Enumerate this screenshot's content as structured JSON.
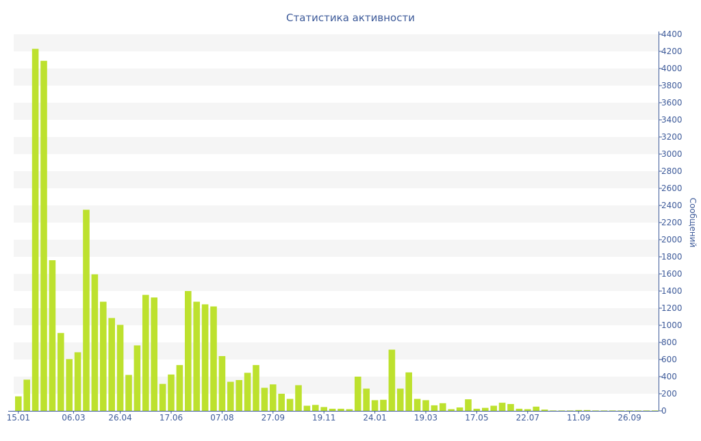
{
  "chart_data": {
    "type": "bar",
    "title": "Статистика активности",
    "ylabel": "Сообщений",
    "xlabel": "",
    "ylim": [
      0,
      4400
    ],
    "y_ticks": [
      0,
      200,
      400,
      600,
      800,
      1000,
      1200,
      1400,
      1600,
      1800,
      2000,
      2200,
      2400,
      2600,
      2800,
      3000,
      3200,
      3400,
      3600,
      3800,
      4000,
      4200,
      4400
    ],
    "y_axis_position": "right",
    "x_tick_labels": [
      {
        "label": "15.01",
        "index": 0
      },
      {
        "label": "06.03",
        "index": 6.5
      },
      {
        "label": "26.04",
        "index": 12
      },
      {
        "label": "17.06",
        "index": 18
      },
      {
        "label": "07.08",
        "index": 24
      },
      {
        "label": "27.09",
        "index": 30
      },
      {
        "label": "19.11",
        "index": 36
      },
      {
        "label": "24.01",
        "index": 42
      },
      {
        "label": "19.03",
        "index": 48
      },
      {
        "label": "17.05",
        "index": 54
      },
      {
        "label": "22.07",
        "index": 60
      },
      {
        "label": "11.09",
        "index": 66
      },
      {
        "label": "26.09",
        "index": 72
      }
    ],
    "grid": "horizontal-bands",
    "legend": "none",
    "colors": {
      "bar": "#bde12e",
      "axis": "#3d5a99",
      "text": "#3d5a99",
      "band": "#f5f5f5"
    },
    "series": [
      {
        "values": [
          170,
          365,
          4230,
          4090,
          1760,
          910,
          605,
          685,
          2350,
          1595,
          1275,
          1085,
          1005,
          420,
          765,
          1355,
          1325,
          315,
          425,
          535,
          1400,
          1275,
          1245,
          1220,
          640,
          340,
          360,
          445,
          535,
          270,
          310,
          200,
          140,
          300,
          60,
          70,
          45,
          25,
          25,
          20,
          400,
          260,
          125,
          130,
          715,
          260,
          450,
          140,
          125,
          65,
          90,
          20,
          40,
          135,
          25,
          35,
          60,
          95,
          80,
          25,
          20,
          50,
          15,
          5,
          5,
          5,
          10,
          10,
          5,
          5,
          5,
          5,
          5,
          5,
          5,
          5
        ]
      }
    ]
  }
}
